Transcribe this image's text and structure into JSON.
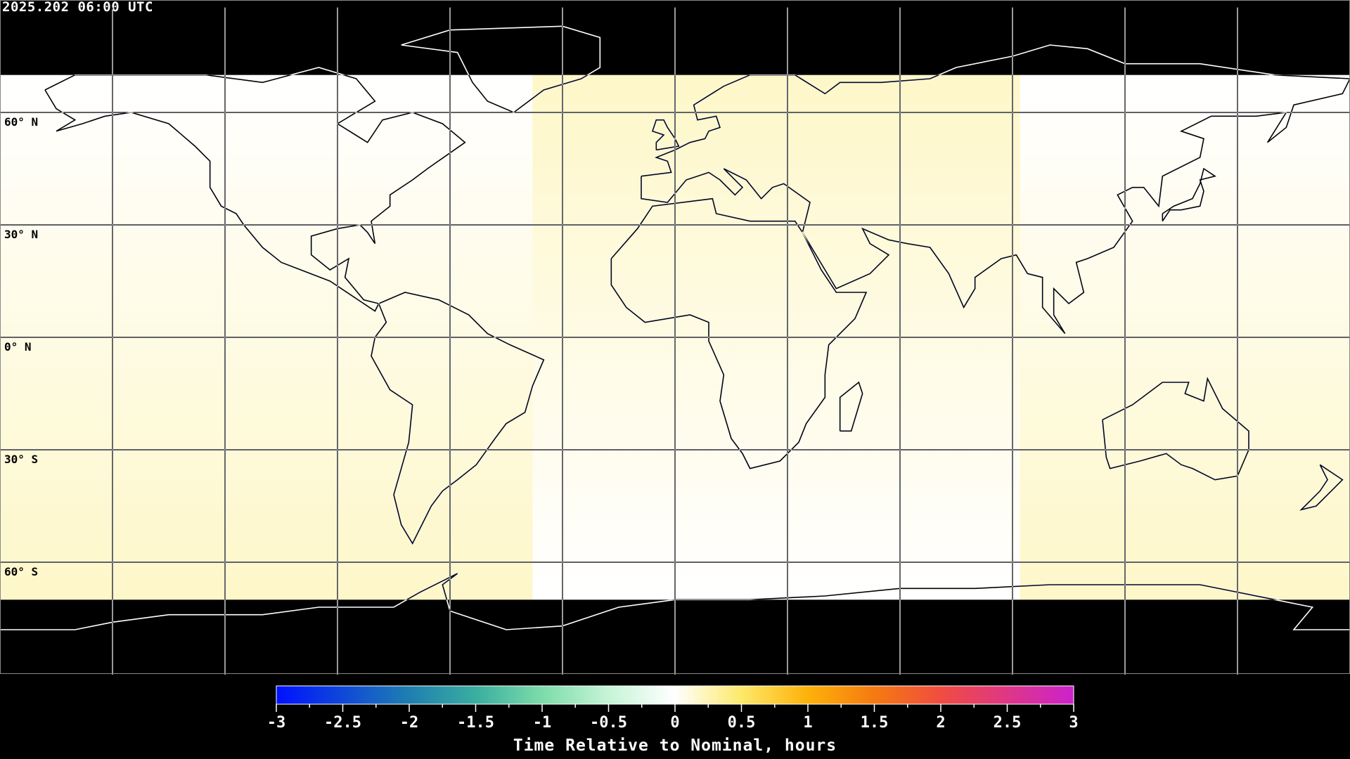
{
  "title": "2025.202 06:00 UTC",
  "map": {
    "projection": "equirectangular",
    "lon_range": [
      -180,
      180
    ],
    "lat_range": [
      -90,
      90
    ],
    "grid_lon_step": 30,
    "grid_lat_step": 30,
    "data_lat_extent": [
      -70,
      70
    ],
    "lat_labels": [
      "60° N",
      "30° N",
      "0° N",
      "30° S",
      "60° S"
    ],
    "lat_label_values": [
      60,
      30,
      0,
      -30,
      -60
    ],
    "regions": [
      {
        "lon_range": [
          -180,
          -38
        ],
        "north_value": 0.0,
        "south_value": 0.3
      },
      {
        "lon_range": [
          -38,
          92
        ],
        "north_value": 0.3,
        "south_value": 0.0
      },
      {
        "lon_range": [
          92,
          180
        ],
        "north_value": 0.0,
        "south_value": 0.3
      }
    ],
    "colors": {
      "background": "#000000",
      "no_data": "#000000"
    }
  },
  "colorbar": {
    "title": "Time Relative to Nominal, hours",
    "min": -3,
    "max": 3,
    "tick_labels": [
      "-3",
      "-2.5",
      "-2",
      "-1.5",
      "-1",
      "-0.5",
      "0",
      "0.5",
      "1",
      "1.5",
      "2",
      "2.5",
      "3"
    ],
    "tick_values": [
      -3,
      -2.5,
      -2,
      -1.5,
      -1,
      -0.5,
      0,
      0.5,
      1,
      1.5,
      2,
      2.5,
      3
    ],
    "stops": [
      {
        "value": -3,
        "color": "#0011ff"
      },
      {
        "value": -2,
        "color": "#1f7fb0"
      },
      {
        "value": -1.5,
        "color": "#3aaea0"
      },
      {
        "value": -1,
        "color": "#7ddcaa"
      },
      {
        "value": -0.5,
        "color": "#c6f4d6"
      },
      {
        "value": 0,
        "color": "#ffffff"
      },
      {
        "value": 0.5,
        "color": "#fde96a"
      },
      {
        "value": 1,
        "color": "#fdb10a"
      },
      {
        "value": 1.5,
        "color": "#f57a10"
      },
      {
        "value": 2,
        "color": "#f04c40"
      },
      {
        "value": 3,
        "color": "#cc22cc"
      }
    ]
  }
}
